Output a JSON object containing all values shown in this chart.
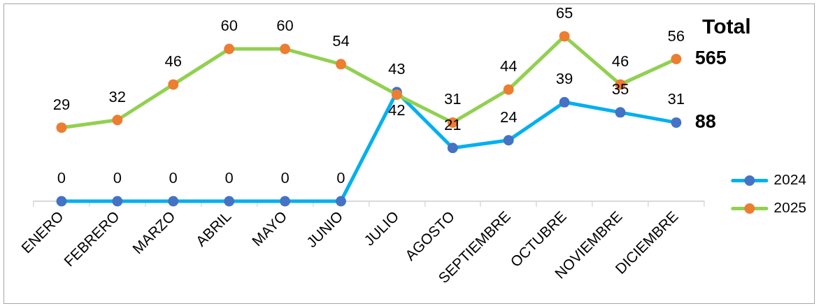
{
  "chart_data": {
    "type": "line",
    "categories": [
      "ENERO",
      "FEBRERO",
      "MARZO",
      "ABRIL",
      "MAYO",
      "JUNIO",
      "JULIO",
      "AGOSTO",
      "SEPTIEMBRE",
      "OCTUBRE",
      "NOVIEMBRE",
      "DICIEMBRE"
    ],
    "series": [
      {
        "name": "2024",
        "color": "#00b0f0",
        "colors": [
          "#4472c4",
          "#4472c4",
          "#4472c4",
          "#4472c4",
          "#4472c4",
          "#4472c4",
          "#4472c4",
          "#4472c4",
          "#4472c4",
          "#4472c4",
          "#4472c4",
          "#4472c4"
        ],
        "values": [
          0,
          0,
          0,
          0,
          0,
          0,
          43,
          21,
          24,
          39,
          35,
          31
        ]
      },
      {
        "name": "2025",
        "color": "#92d050",
        "colors": [
          "#ed7d31",
          "#ed7d31",
          "#ed7d31",
          "#ed7d31",
          "#ed7d31",
          "#ed7d31",
          "#ed7d31",
          "#ed7d31",
          "#ed7d31",
          "#ed7d31",
          "#ed7d31",
          "#ed7d31"
        ],
        "values": [
          29,
          32,
          46,
          60,
          60,
          54,
          42,
          31,
          44,
          65,
          46,
          56
        ]
      }
    ],
    "data_labels": true,
    "marker": "circle",
    "legend": "right",
    "tick_labels": "x",
    "annotations": [
      "Total",
      {
        "text": "565",
        "x": "DICIEMBRE",
        "y": 56
      },
      {
        "text": "88",
        "x": "DICIEMBRE",
        "y": 31
      }
    ]
  }
}
